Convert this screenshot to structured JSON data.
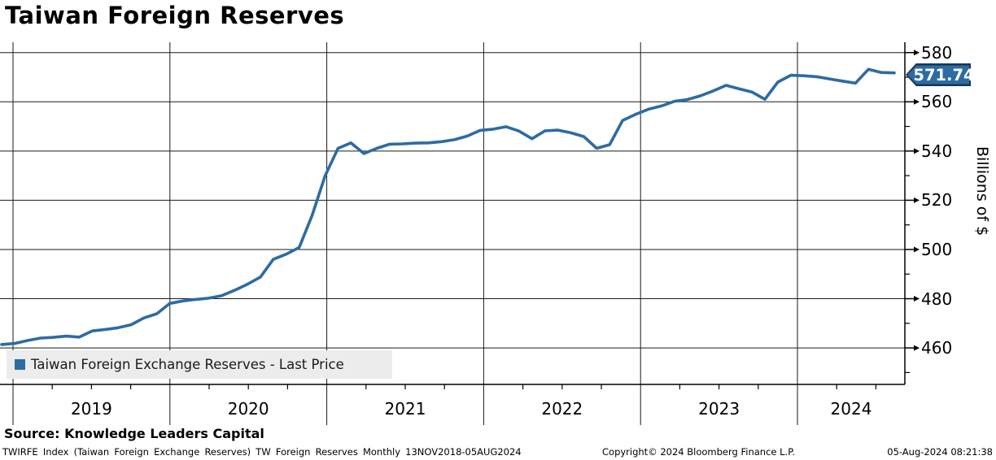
{
  "title": "Taiwan Foreign Reserves",
  "chart_data": {
    "type": "line",
    "title": "Taiwan Foreign Reserves",
    "ylabel": "Billions of $",
    "xlabel": "",
    "frequency": "Monthly",
    "x_start": "Nov 2018",
    "x_end": "Aug 2024",
    "grid": "on",
    "legend_position": "bottom-left",
    "ylim": [
      450,
      583
    ],
    "yticks": [
      460,
      480,
      500,
      520,
      540,
      560,
      580
    ],
    "yticks_minor": [
      450,
      470,
      490,
      510,
      530,
      550,
      570
    ],
    "year_labels": [
      "2019",
      "2020",
      "2021",
      "2022",
      "2023",
      "2024"
    ],
    "last_price": "571.74",
    "line_color": "#2d6ba3",
    "series": [
      {
        "name": "Taiwan Foreign Exchange Reserves - Last Price",
        "values": [
          461.4,
          461.8,
          463.0,
          464.0,
          464.3,
          464.8,
          464.4,
          466.9,
          467.5,
          468.2,
          469.4,
          472.2,
          473.9,
          478.1,
          479.1,
          479.7,
          480.2,
          481.2,
          483.4,
          485.9,
          488.8,
          496.0,
          498.1,
          500.8,
          513.9,
          529.9,
          541.1,
          543.3,
          539.0,
          541.1,
          542.8,
          542.9,
          543.2,
          543.3,
          543.8,
          544.6,
          546.1,
          548.4,
          548.9,
          549.9,
          548.1,
          545.0,
          548.2,
          548.5,
          547.4,
          545.9,
          541.1,
          542.6,
          552.4,
          554.9,
          557.0,
          558.3,
          560.2,
          560.9,
          562.4,
          564.4,
          566.7,
          565.3,
          564.0,
          561.0,
          568.0,
          570.8,
          570.6,
          570.2,
          569.3,
          568.4,
          567.6,
          573.2,
          571.9,
          571.74
        ]
      }
    ]
  },
  "legend": {
    "label": "Taiwan Foreign Exchange Reserves - Last Price",
    "marker_color": "#2d6ba3"
  },
  "footer": {
    "source_line": "Source: Knowledge Leaders Capital",
    "meta_left": "TWIRFE Index (Taiwan Foreign Exchange Reserves) TW Foreign Reserves  Monthly 13NOV2018-05AUG2024",
    "meta_center": "Copyright© 2024 Bloomberg Finance L.P.",
    "meta_right": "05-Aug-2024 08:21:38"
  }
}
